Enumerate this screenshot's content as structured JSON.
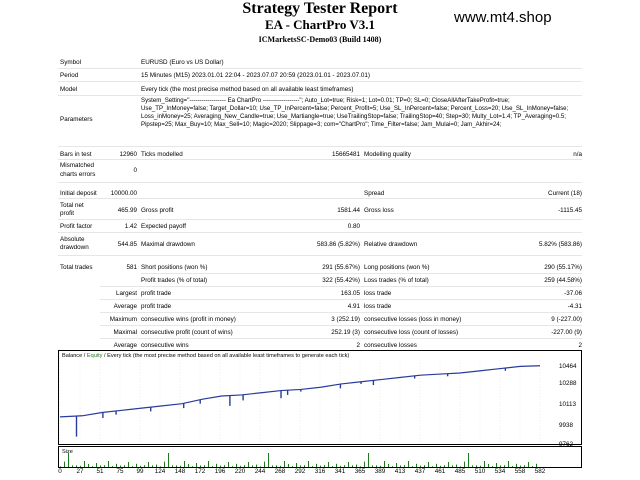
{
  "header": {
    "title": "Strategy Tester Report",
    "subtitle": "EA - ChartPro V3.1",
    "server": "ICMarketsSC-Demo03 (Build 1408)",
    "watermark": "www.mt4.shop"
  },
  "info": {
    "symbol_label": "Symbol",
    "symbol_value": "EURUSD (Euro vs US Dollar)",
    "period_label": "Period",
    "period_value": "15 Minutes (M15) 2023.01.01 22:04 - 2023.07.07 20:59 (2023.01.01 - 2023.07.01)",
    "model_label": "Model",
    "model_value": "Every tick (the most precise method based on all available least timeframes)",
    "parameters_label": "Parameters",
    "parameters_value": "System_Setting=\"------------------ Ea ChartPro ------------------\"; Auto_Lot=true; Risk=1; Lot=0.01; TP=0; SL=0; CloseAllAfterTakeProfit=true; Use_TP_InMoney=false; Target_Dollar=10; Use_TP_InPercent=false; Percent_Profit=5; Use_SL_InPercent=false; Percent_Loss=20; Use_SL_InMoney=false; Loss_inMoney=25; Averaging_New_Candle=true; Use_Martiangle=true; UseTrailingStop=false; TrailingStop=40; Step=30; Multy_Lot=1.4; TP_Averaging=0.5; Pipstep=25; Max_Buy=10; Max_Sell=10; Magic=2020; Slippage=3; com=\"ChartPro\"; Time_Filter=false; Jam_Mulai=0; Jam_Akhir=24;"
  },
  "bars": {
    "bars_label": "Bars in test",
    "bars_value": "12960",
    "ticks_label": "Ticks modelled",
    "ticks_value": "15665481",
    "quality_label": "Modelling quality",
    "quality_value": "n/a",
    "mismatch_label1": "Mismatched",
    "mismatch_label2": "charts errors",
    "mismatch_value": "0"
  },
  "results": {
    "deposit_label": "Initial deposit",
    "deposit_value": "10000.00",
    "spread_label": "Spread",
    "spread_value": "Current (18)",
    "netprofit_label1": "Total net",
    "netprofit_label2": "profit",
    "netprofit_value": "465.99",
    "grossprofit_label": "Gross profit",
    "grossprofit_value": "1581.44",
    "grossloss_label": "Gross loss",
    "grossloss_value": "-1115.45",
    "pf_label": "Profit factor",
    "pf_value": "1.42",
    "payoff_label": "Expected payoff",
    "payoff_value": "0.80",
    "absdd_label1": "Absolute",
    "absdd_label2": "drawdown",
    "absdd_value": "544.85",
    "maxdd_label": "Maximal drawdown",
    "maxdd_value": "583.86 (5.82%)",
    "reldd_label": "Relative drawdown",
    "reldd_value": "5.82% (583.86)",
    "trades_label": "Total trades",
    "trades_value": "581",
    "short_label": "Short positions (won %)",
    "short_value": "291 (55.67%)",
    "long_label": "Long positions (won %)",
    "long_value": "290 (55.17%)",
    "ptrades_label": "Profit trades (% of total)",
    "ptrades_value": "322 (55.42%)",
    "ltrades_label": "Loss trades (% of total)",
    "ltrades_value": "259 (44.58%)",
    "largest_label": "Largest",
    "avg_label": "Average",
    "max_label": "Maximum",
    "maximal_label": "Maximal",
    "average2_label": "Average",
    "lpt_label": "profit trade",
    "lpt_value": "163.05",
    "llt_label": "loss trade",
    "llt_value": "-37.06",
    "apt_label": "profit trade",
    "apt_value": "4.91",
    "alt_label": "loss trade",
    "alt_value": "-4.31",
    "mcw_label": "consecutive wins (profit in money)",
    "mcw_value": "3 (252.19)",
    "mcl_label": "consecutive losses (loss in money)",
    "mcl_value": "9 (-227.00)",
    "mxcw_label": "consecutive profit (count of wins)",
    "mxcw_value": "252.19 (3)",
    "mxcl_label": "consecutive loss (count of losses)",
    "mxcl_value": "-227.00 (9)",
    "acw_label": "consecutive wins",
    "acw_value": "2",
    "acl_label": "consecutive losses",
    "acl_value": "2"
  },
  "chart_data": {
    "type": "line",
    "legend_balance": "Balance",
    "legend_sep": " / ",
    "legend_equity": "Equity",
    "legend_rest": " / Every tick (the most precise method based on all available least timeframes to generate each tick)",
    "y_ticks": [
      "10464",
      "10288",
      "10113",
      "9938",
      "9762"
    ],
    "x_ticks": [
      "0",
      "27",
      "51",
      "75",
      "99",
      "124",
      "148",
      "172",
      "196",
      "220",
      "244",
      "268",
      "292",
      "316",
      "341",
      "365",
      "389",
      "413",
      "437",
      "461",
      "485",
      "510",
      "534",
      "558",
      "582"
    ],
    "vol_label": "Size",
    "ylim": [
      9762,
      10500
    ],
    "xlim": [
      0,
      582
    ],
    "balance": [
      [
        0,
        10000
      ],
      [
        27,
        10010
      ],
      [
        51,
        10040
      ],
      [
        75,
        10060
      ],
      [
        99,
        10080
      ],
      [
        124,
        10100
      ],
      [
        148,
        10120
      ],
      [
        172,
        10160
      ],
      [
        196,
        10190
      ],
      [
        220,
        10200
      ],
      [
        244,
        10220
      ],
      [
        268,
        10240
      ],
      [
        292,
        10250
      ],
      [
        316,
        10270
      ],
      [
        341,
        10300
      ],
      [
        365,
        10320
      ],
      [
        389,
        10340
      ],
      [
        413,
        10360
      ],
      [
        437,
        10380
      ],
      [
        461,
        10390
      ],
      [
        485,
        10400
      ],
      [
        510,
        10420
      ],
      [
        534,
        10440
      ],
      [
        558,
        10460
      ],
      [
        582,
        10466
      ]
    ],
    "equity_dips": [
      [
        20,
        9820
      ],
      [
        52,
        9990
      ],
      [
        68,
        10020
      ],
      [
        110,
        10050
      ],
      [
        150,
        10080
      ],
      [
        170,
        10120
      ],
      [
        206,
        10100
      ],
      [
        222,
        10150
      ],
      [
        268,
        10170
      ],
      [
        276,
        10200
      ],
      [
        292,
        10230
      ],
      [
        340,
        10260
      ],
      [
        365,
        10300
      ],
      [
        380,
        10290
      ],
      [
        430,
        10350
      ],
      [
        470,
        10370
      ],
      [
        540,
        10420
      ]
    ],
    "colors": {
      "balance": "#2b3b9c",
      "equity": "#1f7a1f",
      "grid": "#d8d8d8"
    }
  }
}
